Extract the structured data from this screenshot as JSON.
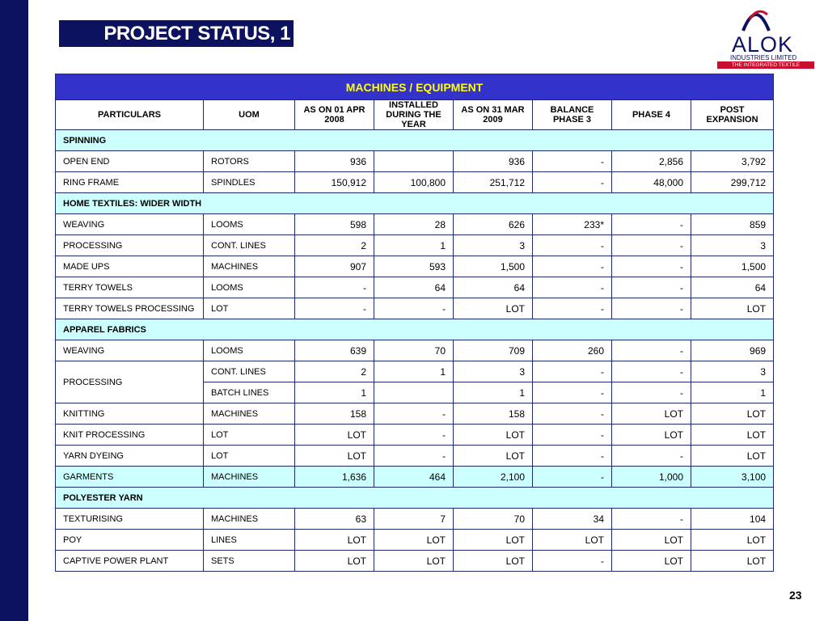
{
  "title": "PROJECT STATUS, 1",
  "logo": {
    "brand": "ALOK",
    "line1": "INDUSTRIES LIMITED",
    "line2": "THE INTEGRATED TEXTILE SOLUTIONS"
  },
  "page_number": "23",
  "table": {
    "caption": "MACHINES / EQUIPMENT",
    "headers": [
      "PARTICULARS",
      "UOM",
      "AS ON 01 APR 2008",
      "INSTALLED DURING THE YEAR",
      "AS ON 31 MAR 2009",
      "BALANCE PHASE 3",
      "PHASE 4",
      "POST EXPANSION"
    ],
    "sections": {
      "spinning": "SPINNING",
      "home_textiles": "HOME TEXTILES: WIDER WIDTH",
      "apparel": "APPAREL FABRICS",
      "polyester": "POLYESTER YARN"
    },
    "rows": {
      "open_end": [
        "OPEN END",
        "ROTORS",
        "936",
        "",
        "936",
        "-",
        "2,856",
        "3,792"
      ],
      "ring_frame": [
        "RING FRAME",
        "SPINDLES",
        "150,912",
        "100,800",
        "251,712",
        "-",
        "48,000",
        "299,712"
      ],
      "weaving_ht": [
        "WEAVING",
        "LOOMS",
        "598",
        "28",
        "626",
        "233*",
        "-",
        "859"
      ],
      "processing_ht": [
        "PROCESSING",
        "CONT. LINES",
        "2",
        "1",
        "3",
        "-",
        "-",
        "3"
      ],
      "made_ups": [
        "MADE UPS",
        "MACHINES",
        "907",
        "593",
        "1,500",
        "-",
        "-",
        "1,500"
      ],
      "terry_towels": [
        "TERRY TOWELS",
        "LOOMS",
        "-",
        "64",
        "64",
        "-",
        "-",
        "64"
      ],
      "terry_proc": [
        "TERRY TOWELS PROCESSING",
        "LOT",
        "-",
        "-",
        "LOT",
        "-",
        "-",
        "LOT"
      ],
      "weaving_ap": [
        "WEAVING",
        "LOOMS",
        "639",
        "70",
        "709",
        "260",
        "-",
        "969"
      ],
      "processing_ap1": [
        "PROCESSING",
        "CONT. LINES",
        "2",
        "1",
        "3",
        "-",
        "-",
        "3"
      ],
      "processing_ap2": [
        "",
        "BATCH LINES",
        "1",
        "",
        "1",
        "-",
        "-",
        "1"
      ],
      "knitting": [
        "KNITTING",
        "MACHINES",
        "158",
        "-",
        "158",
        "-",
        "LOT",
        "LOT"
      ],
      "knit_proc": [
        "KNIT PROCESSING",
        "LOT",
        "LOT",
        "-",
        "LOT",
        "-",
        "LOT",
        "LOT"
      ],
      "yarn_dyeing": [
        "YARN DYEING",
        "LOT",
        "LOT",
        "-",
        "LOT",
        "-",
        "-",
        "LOT"
      ],
      "garments": [
        "GARMENTS",
        "MACHINES",
        "1,636",
        "464",
        "2,100",
        "-",
        "1,000",
        "3,100"
      ],
      "texturising": [
        "TEXTURISING",
        "MACHINES",
        "63",
        "7",
        "70",
        "34",
        "-",
        "104"
      ],
      "poy": [
        "POY",
        "LINES",
        "LOT",
        "LOT",
        "LOT",
        "LOT",
        "LOT",
        "LOT"
      ],
      "captive": [
        "CAPTIVE POWER PLANT",
        "SETS",
        "LOT",
        "LOT",
        "LOT",
        "-",
        "LOT",
        "LOT"
      ]
    }
  }
}
